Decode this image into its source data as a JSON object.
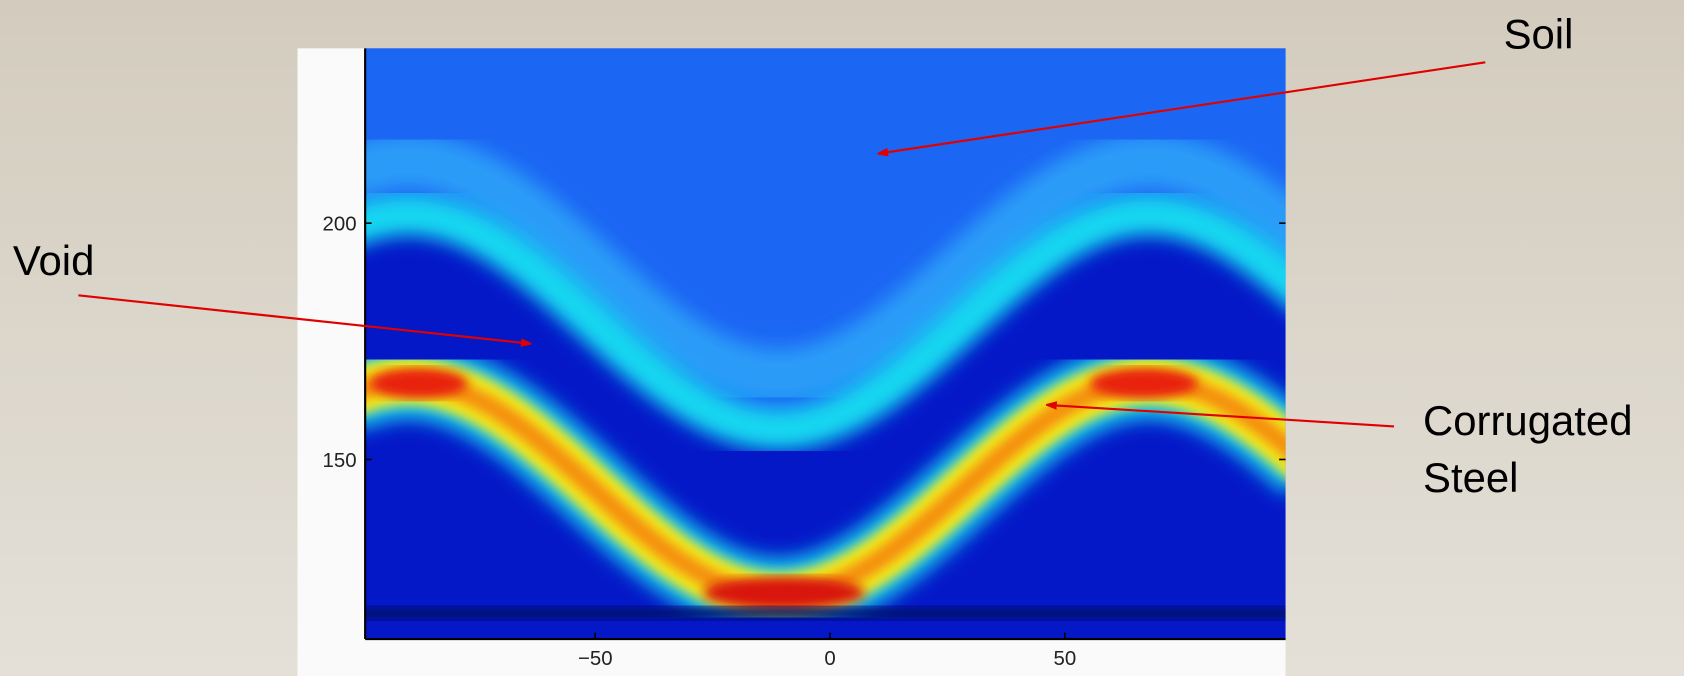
{
  "chart_data": {
    "type": "heatmap",
    "xlim": [
      -99,
      97
    ],
    "ylim": [
      112,
      237
    ],
    "xticks": [
      {
        "value": -50,
        "label": "−50"
      },
      0,
      50
    ],
    "yticks": [
      150,
      200
    ],
    "annotations": [
      {
        "lines": [
          "Soil"
        ]
      },
      {
        "lines": [
          "Void"
        ]
      },
      {
        "lines": [
          "Corrugated",
          "Steel"
        ]
      }
    ]
  }
}
